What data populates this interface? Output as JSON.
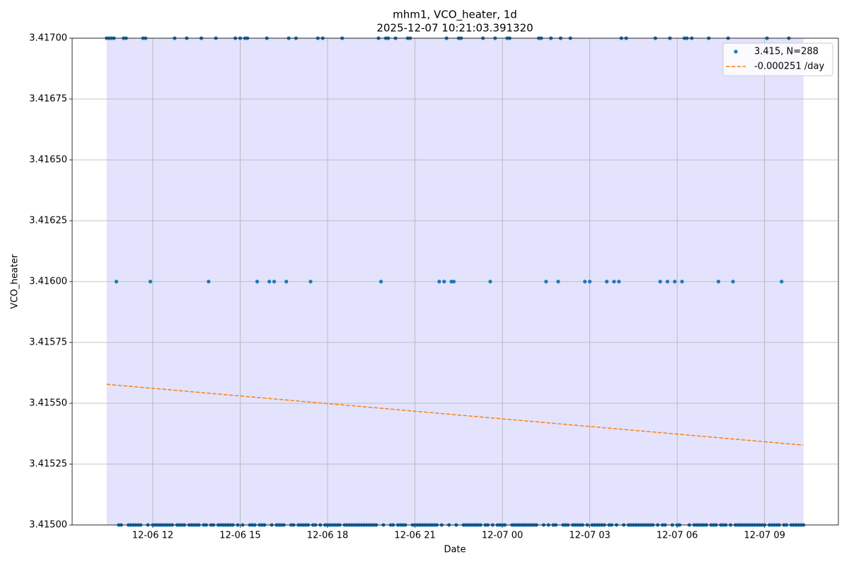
{
  "chart_data": {
    "type": "scatter",
    "title": "mhm1, VCO_heater, 1d",
    "subtitle": "2025-12-07 10:21:03.391320",
    "x_label": "Date",
    "y_label": "VCO_heater",
    "x": [
      625,
      630,
      635,
      640,
      645,
      650,
      655,
      660,
      665,
      670,
      675,
      680,
      685,
      690,
      695,
      700,
      705,
      710,
      715,
      720,
      725,
      730,
      735,
      740,
      745,
      750,
      755,
      760,
      765,
      770,
      775,
      780,
      785,
      790,
      795,
      800,
      805,
      810,
      815,
      820,
      825,
      830,
      835,
      840,
      845,
      850,
      855,
      860,
      865,
      870,
      875,
      880,
      885,
      890,
      895,
      900,
      905,
      910,
      915,
      920,
      925,
      930,
      935,
      940,
      945,
      950,
      955,
      960,
      965,
      970,
      975,
      980,
      985,
      990,
      995,
      1000,
      1005,
      1010,
      1015,
      1020,
      1025,
      1030,
      1035,
      1040,
      1045,
      1050,
      1055,
      1060,
      1065,
      1070,
      1075,
      1080,
      1085,
      1090,
      1095,
      1100,
      1105,
      1110,
      1115,
      1120,
      1125,
      1130,
      1135,
      1140,
      1145,
      1150,
      1155,
      1160,
      1165,
      1170,
      1175,
      1180,
      1185,
      1190,
      1195,
      1200,
      1205,
      1210,
      1215,
      1220,
      1225,
      1230,
      1235,
      1240,
      1245,
      1250,
      1255,
      1260,
      1265,
      1270,
      1275,
      1280,
      1285,
      1290,
      1295,
      1300,
      1305,
      1310,
      1315,
      1320,
      1325,
      1330,
      1335,
      1340,
      1345,
      1350,
      1355,
      1360,
      1365,
      1370,
      1375,
      1380,
      1385,
      1390,
      1395,
      1400,
      1405,
      1410,
      1415,
      1420,
      1425,
      1430,
      1435,
      1440,
      1445,
      1450,
      1455,
      1460,
      1465,
      1470,
      1475,
      1480,
      1485,
      1490,
      1495,
      1500,
      1505,
      1510,
      1515,
      1520,
      1525,
      1530,
      1535,
      1540,
      1545,
      1550,
      1555,
      1560,
      1565,
      1570,
      1575,
      1580,
      1585,
      1590,
      1595,
      1600,
      1605,
      1610,
      1615,
      1620,
      1625,
      1630,
      1635,
      1640,
      1645,
      1650,
      1655,
      1660,
      1665,
      1670,
      1675,
      1680,
      1685,
      1690,
      1695,
      1700,
      1705,
      1710,
      1715,
      1720,
      1725,
      1730,
      1735,
      1740,
      1745,
      1750,
      1755,
      1760,
      1765,
      1770,
      1775,
      1780,
      1785,
      1790,
      1795,
      1800,
      1805,
      1810,
      1815,
      1820,
      1825,
      1830,
      1835,
      1840,
      1845,
      1850,
      1855,
      1860,
      1865,
      1870,
      1875,
      1880,
      1885,
      1890,
      1895,
      1900,
      1905,
      1910,
      1915,
      1920,
      1925,
      1930,
      1935,
      1940,
      1945,
      1950,
      1955,
      1960,
      1965,
      1970,
      1975,
      1980,
      1985,
      1990,
      1995,
      2000,
      2005,
      2010,
      2015,
      2020,
      2025,
      2030,
      2035,
      2040,
      2045,
      2050,
      2055,
      2060
    ],
    "series": [
      {
        "name": "3.415, N=288",
        "color": "#1f77b4",
        "values": [
          3.417,
          3.417,
          3.417,
          3.417,
          3.416,
          3.415,
          3.415,
          3.417,
          3.417,
          3.415,
          3.415,
          3.415,
          3.415,
          3.415,
          3.415,
          3.417,
          3.417,
          3.415,
          3.416,
          3.415,
          3.415,
          3.415,
          3.415,
          3.415,
          3.415,
          3.415,
          3.415,
          3.415,
          3.417,
          3.415,
          3.415,
          3.415,
          3.415,
          3.417,
          3.415,
          3.415,
          3.415,
          3.415,
          3.415,
          3.417,
          3.415,
          3.415,
          3.416,
          3.415,
          3.415,
          3.417,
          3.415,
          3.415,
          3.415,
          3.415,
          3.415,
          3.415,
          3.415,
          3.417,
          3.415,
          3.417,
          3.415,
          3.417,
          3.417,
          3.415,
          3.415,
          3.415,
          3.416,
          3.415,
          3.415,
          3.415,
          3.417,
          3.416,
          3.415,
          3.416,
          3.415,
          3.415,
          3.415,
          3.415,
          3.416,
          3.417,
          3.415,
          3.415,
          3.417,
          3.415,
          3.415,
          3.415,
          3.415,
          3.415,
          3.416,
          3.415,
          3.415,
          3.417,
          3.415,
          3.417,
          3.415,
          3.415,
          3.415,
          3.415,
          3.415,
          3.415,
          3.415,
          3.417,
          3.415,
          3.415,
          3.415,
          3.415,
          3.415,
          3.415,
          3.415,
          3.415,
          3.415,
          3.415,
          3.415,
          3.415,
          3.415,
          3.415,
          3.417,
          3.416,
          3.415,
          3.417,
          3.417,
          3.415,
          3.415,
          3.417,
          3.415,
          3.415,
          3.415,
          3.415,
          3.417,
          3.417,
          3.415,
          3.415,
          3.415,
          3.415,
          3.415,
          3.415,
          3.415,
          3.415,
          3.415,
          3.415,
          3.415,
          3.416,
          3.415,
          3.416,
          3.417,
          3.415,
          3.416,
          3.416,
          3.415,
          3.417,
          3.417,
          3.415,
          3.415,
          3.415,
          3.415,
          3.415,
          3.415,
          3.415,
          3.415,
          3.417,
          3.415,
          3.415,
          3.416,
          3.415,
          3.417,
          3.415,
          3.415,
          3.415,
          3.415,
          3.417,
          3.417,
          3.415,
          3.415,
          3.415,
          3.415,
          3.415,
          3.415,
          3.415,
          3.415,
          3.415,
          3.415,
          3.415,
          3.417,
          3.417,
          3.415,
          3.416,
          3.415,
          3.417,
          3.415,
          3.415,
          3.416,
          3.417,
          3.415,
          3.415,
          3.415,
          3.417,
          3.415,
          3.415,
          3.415,
          3.415,
          3.415,
          3.416,
          3.415,
          3.416,
          3.415,
          3.415,
          3.415,
          3.415,
          3.415,
          3.415,
          3.416,
          3.415,
          3.415,
          3.416,
          3.415,
          3.416,
          3.417,
          3.415,
          3.417,
          3.415,
          3.415,
          3.415,
          3.415,
          3.415,
          3.415,
          3.415,
          3.415,
          3.415,
          3.415,
          3.415,
          3.417,
          3.415,
          3.416,
          3.415,
          3.415,
          3.416,
          3.417,
          3.415,
          3.416,
          3.415,
          3.415,
          3.416,
          3.417,
          3.417,
          3.415,
          3.417,
          3.415,
          3.415,
          3.415,
          3.415,
          3.415,
          3.415,
          3.417,
          3.415,
          3.415,
          3.415,
          3.416,
          3.415,
          3.415,
          3.415,
          3.417,
          3.415,
          3.416,
          3.415,
          3.415,
          3.415,
          3.415,
          3.415,
          3.415,
          3.415,
          3.415,
          3.415,
          3.415,
          3.415,
          3.415,
          3.415,
          3.417,
          3.415,
          3.415,
          3.415,
          3.415,
          3.415,
          3.416,
          3.415,
          3.415,
          3.417,
          3.415,
          3.415,
          3.415,
          3.415,
          3.415,
          3.415
        ]
      },
      {
        "name": "-0.000251 /day",
        "color": "#ff7f0e",
        "type": "line",
        "dashed": true,
        "x": [
          625,
          2060
        ],
        "values": [
          3.415578,
          3.415328
        ]
      }
    ],
    "span": [
      625,
      2060
    ],
    "span_color": "#e3e3fd",
    "xlim": [
      554,
      2132
    ],
    "xticks": [
      {
        "value": 720,
        "label": "12-06 12"
      },
      {
        "value": 900,
        "label": "12-06 15"
      },
      {
        "value": 1080,
        "label": "12-06 18"
      },
      {
        "value": 1260,
        "label": "12-06 21"
      },
      {
        "value": 1440,
        "label": "12-07 00"
      },
      {
        "value": 1620,
        "label": "12-07 03"
      },
      {
        "value": 1800,
        "label": "12-07 06"
      },
      {
        "value": 1980,
        "label": "12-07 09"
      }
    ],
    "ylim": [
      3.415,
      3.417
    ],
    "yticks": [
      {
        "value": 3.415,
        "label": "3.41500"
      },
      {
        "value": 3.41525,
        "label": "3.41525"
      },
      {
        "value": 3.4155,
        "label": "3.41550"
      },
      {
        "value": 3.41575,
        "label": "3.41575"
      },
      {
        "value": 3.416,
        "label": "3.41600"
      },
      {
        "value": 3.41625,
        "label": "3.41625"
      },
      {
        "value": 3.4165,
        "label": "3.41650"
      },
      {
        "value": 3.41675,
        "label": "3.41675"
      },
      {
        "value": 3.417,
        "label": "3.41700"
      }
    ],
    "grid": true,
    "legend": "upper right"
  }
}
